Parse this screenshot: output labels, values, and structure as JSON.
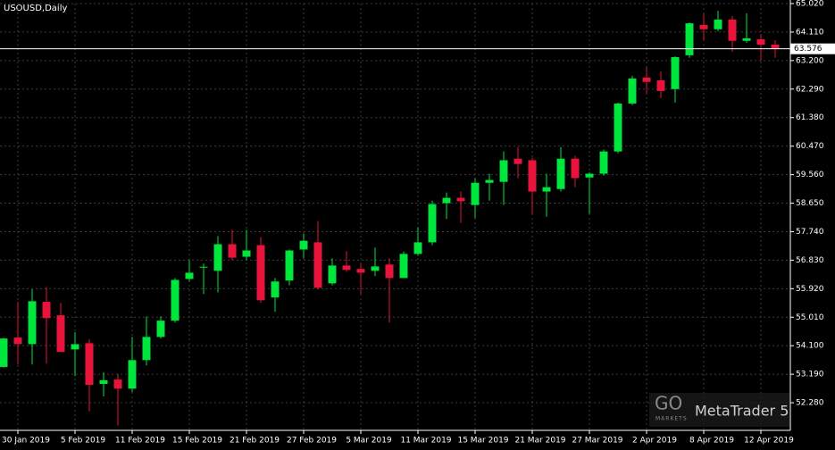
{
  "chart_data": {
    "type": "candlestick",
    "title": "USOUSD,Daily",
    "categories": [
      null,
      "30 Jan 2019",
      null,
      null,
      null,
      "5 Feb 2019",
      null,
      null,
      null,
      "11 Feb 2019",
      null,
      null,
      null,
      "15 Feb 2019",
      null,
      null,
      null,
      "21 Feb 2019",
      null,
      null,
      null,
      "27 Feb 2019",
      null,
      null,
      null,
      "5 Mar 2019",
      null,
      null,
      null,
      "11 Mar 2019",
      null,
      null,
      null,
      "15 Mar 2019",
      null,
      null,
      null,
      "21 Mar 2019",
      null,
      null,
      null,
      "27 Mar 2019",
      null,
      null,
      null,
      "2 Apr 2019",
      null,
      null,
      null,
      "8 Apr 2019",
      null,
      null,
      null,
      "12 Apr 2019",
      null
    ],
    "open": [
      53.42,
      54.36,
      54.15,
      55.5,
      55.07,
      53.98,
      54.18,
      52.88,
      53.02,
      52.73,
      53.64,
      54.38,
      54.9,
      56.23,
      56.6,
      56.49,
      57.34,
      56.94,
      57.31,
      55.64,
      56.18,
      57.17,
      57.4,
      56.09,
      56.66,
      56.55,
      56.49,
      56.69,
      56.26,
      57.03,
      57.4,
      58.65,
      58.82,
      58.59,
      59.3,
      59.33,
      60.07,
      60.02,
      59.02,
      59.1,
      60.07,
      59.47,
      59.59,
      60.3,
      61.83,
      62.66,
      62.57,
      62.29,
      63.37,
      64.34,
      64.2,
      64.51,
      63.83,
      63.88,
      63.71
    ],
    "high": [
      54.35,
      55.5,
      55.9,
      55.97,
      55.47,
      54.53,
      54.3,
      53.25,
      53.2,
      54.38,
      55.04,
      55.04,
      56.26,
      56.83,
      56.72,
      57.6,
      57.8,
      57.8,
      57.57,
      56.26,
      57.17,
      57.68,
      58.08,
      56.89,
      57.12,
      56.72,
      57.23,
      56.89,
      57.11,
      57.88,
      58.73,
      58.99,
      59.02,
      59.45,
      59.59,
      60.3,
      60.44,
      60.1,
      59.59,
      60.44,
      60.16,
      59.64,
      60.36,
      61.86,
      62.72,
      63.0,
      62.86,
      63.34,
      64.42,
      64.71,
      64.79,
      64.62,
      64.71,
      64.05,
      63.85
    ],
    "low": [
      53.4,
      53.5,
      53.5,
      53.53,
      53.9,
      53.13,
      52.0,
      52.48,
      51.55,
      52.62,
      53.47,
      54.33,
      54.84,
      56.15,
      55.75,
      55.8,
      56.83,
      56.83,
      55.47,
      55.18,
      56.03,
      56.89,
      55.89,
      56.03,
      56.46,
      55.75,
      56.32,
      54.84,
      56.26,
      56.97,
      57.31,
      58.14,
      58.02,
      58.17,
      58.73,
      58.59,
      59.45,
      58.31,
      58.22,
      59.02,
      59.16,
      58.31,
      59.53,
      60.24,
      61.78,
      62.15,
      62.0,
      61.86,
      63.29,
      63.85,
      64.14,
      63.48,
      63.77,
      63.2,
      63.29
    ],
    "close": [
      54.33,
      54.15,
      55.52,
      54.98,
      53.9,
      54.15,
      52.85,
      53.0,
      52.73,
      53.64,
      54.38,
      54.9,
      56.2,
      56.43,
      56.62,
      57.34,
      56.91,
      57.14,
      55.55,
      56.15,
      57.14,
      57.45,
      55.95,
      56.66,
      56.52,
      56.43,
      56.63,
      56.26,
      57.03,
      57.4,
      58.62,
      58.82,
      58.71,
      59.3,
      59.39,
      60.02,
      59.9,
      59.02,
      59.16,
      60.07,
      59.45,
      59.59,
      60.3,
      61.83,
      62.63,
      62.52,
      62.23,
      63.31,
      64.39,
      64.2,
      64.51,
      63.83,
      63.91,
      63.71,
      63.576
    ],
    "up_color": "#00e63c",
    "down_color": "#e8143c",
    "ylim": [
      51.398,
      65.02
    ],
    "yticks": [
      {
        "value": 52.28,
        "label": "52.280"
      },
      {
        "value": 53.19,
        "label": "53.190"
      },
      {
        "value": 54.1,
        "label": "54.100"
      },
      {
        "value": 55.01,
        "label": "55.010"
      },
      {
        "value": 55.92,
        "label": "55.920"
      },
      {
        "value": 56.83,
        "label": "56.830"
      },
      {
        "value": 57.74,
        "label": "57.740"
      },
      {
        "value": 58.65,
        "label": "58.650"
      },
      {
        "value": 59.56,
        "label": "59.560"
      },
      {
        "value": 60.47,
        "label": "60.470"
      },
      {
        "value": 61.38,
        "label": "61.380"
      },
      {
        "value": 62.29,
        "label": "62.290"
      },
      {
        "value": 63.2,
        "label": "63.200"
      },
      {
        "value": 64.11,
        "label": "64.110"
      },
      {
        "value": 65.02,
        "label": "65.020"
      }
    ],
    "current_price": 63.576,
    "grid": true,
    "watermark": {
      "logo": "GO",
      "logo_sub": "MARKETS",
      "platform": "MetaTrader 5"
    }
  }
}
